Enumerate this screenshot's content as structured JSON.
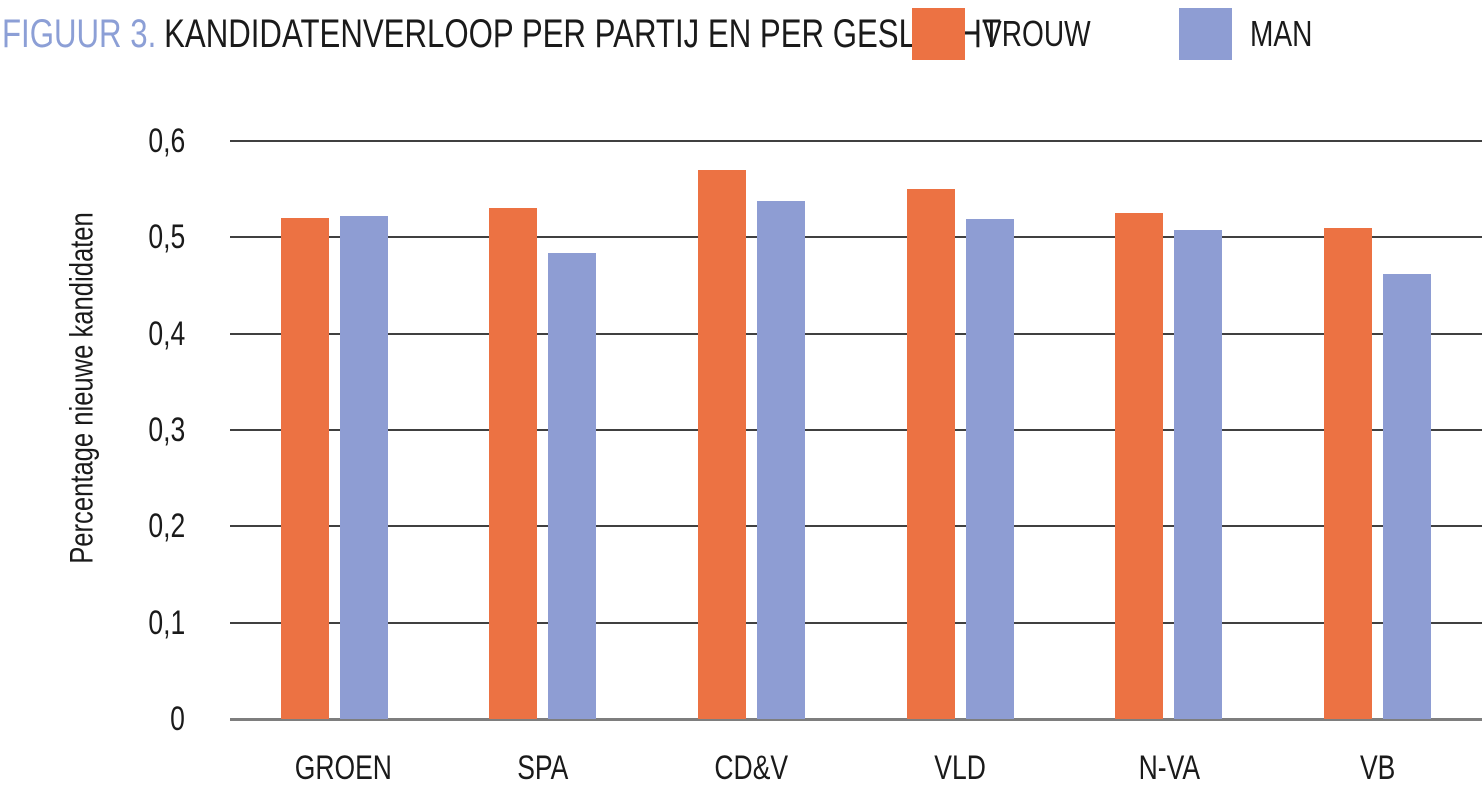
{
  "title": {
    "prefix": "FIGUUR 3.",
    "text": "KANDIDATENVERLOOP PER PARTIJ EN PER GESLACHT"
  },
  "colors": {
    "title_prefix": "#8c9fd6",
    "title_text": "#1a1a1a",
    "gridline": "#404040",
    "axis_line": "#7e7e7e",
    "vrouw": "#ec7243",
    "man": "#8e9dd3"
  },
  "chart_data": {
    "type": "bar",
    "title": "FIGUUR 3. KANDIDATENVERLOOP PER PARTIJ EN PER GESLACHT",
    "categories": [
      "GROEN",
      "SPA",
      "CD&V",
      "VLD",
      "N-VA",
      "VB"
    ],
    "series": [
      {
        "name": "VROUW",
        "color": "#ec7243",
        "values": [
          0.52,
          0.53,
          0.57,
          0.55,
          0.525,
          0.51
        ]
      },
      {
        "name": "MAN",
        "color": "#8e9dd3",
        "values": [
          0.522,
          0.484,
          0.538,
          0.519,
          0.508,
          0.462
        ]
      }
    ],
    "xlabel": "",
    "ylabel": "Percentage nieuwe kandidaten",
    "ylim": [
      0,
      0.6
    ],
    "yticks": [
      0,
      0.1,
      0.2,
      0.3,
      0.4,
      0.5,
      0.6
    ],
    "ytick_labels": [
      "0",
      "0,1",
      "0,2",
      "0,3",
      "0,4",
      "0,5",
      "0,6"
    ],
    "decimal_separator": ",",
    "grid": true,
    "legend_position": "top-right",
    "legend": [
      "VROUW",
      "MAN"
    ]
  }
}
